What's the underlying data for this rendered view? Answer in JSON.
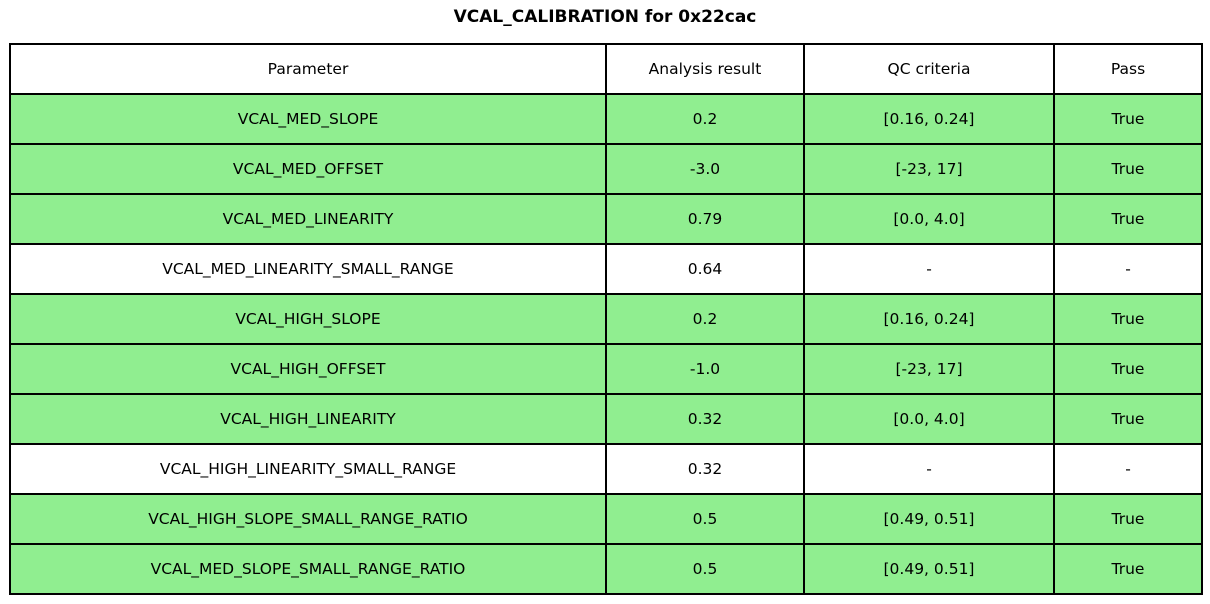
{
  "colors": {
    "row_pass_bg": "#90EE90",
    "row_neutral_bg": "#FFFFFF",
    "border": "#000000",
    "text": "#000000",
    "background": "#FFFFFF"
  },
  "chart_data": {
    "type": "table",
    "title": "VCAL_CALIBRATION for 0x22cac",
    "columns": [
      "Parameter",
      "Analysis result",
      "QC criteria",
      "Pass"
    ],
    "rows": [
      {
        "parameter": "VCAL_MED_SLOPE",
        "result": "0.2",
        "criteria": "[0.16, 0.24]",
        "pass": "True",
        "highlighted": true
      },
      {
        "parameter": "VCAL_MED_OFFSET",
        "result": "-3.0",
        "criteria": "[-23, 17]",
        "pass": "True",
        "highlighted": true
      },
      {
        "parameter": "VCAL_MED_LINEARITY",
        "result": "0.79",
        "criteria": "[0.0, 4.0]",
        "pass": "True",
        "highlighted": true
      },
      {
        "parameter": "VCAL_MED_LINEARITY_SMALL_RANGE",
        "result": "0.64",
        "criteria": "-",
        "pass": "-",
        "highlighted": false
      },
      {
        "parameter": "VCAL_HIGH_SLOPE",
        "result": "0.2",
        "criteria": "[0.16, 0.24]",
        "pass": "True",
        "highlighted": true
      },
      {
        "parameter": "VCAL_HIGH_OFFSET",
        "result": "-1.0",
        "criteria": "[-23, 17]",
        "pass": "True",
        "highlighted": true
      },
      {
        "parameter": "VCAL_HIGH_LINEARITY",
        "result": "0.32",
        "criteria": "[0.0, 4.0]",
        "pass": "True",
        "highlighted": true
      },
      {
        "parameter": "VCAL_HIGH_LINEARITY_SMALL_RANGE",
        "result": "0.32",
        "criteria": "-",
        "pass": "-",
        "highlighted": false
      },
      {
        "parameter": "VCAL_HIGH_SLOPE_SMALL_RANGE_RATIO",
        "result": "0.5",
        "criteria": "[0.49, 0.51]",
        "pass": "True",
        "highlighted": true
      },
      {
        "parameter": "VCAL_MED_SLOPE_SMALL_RANGE_RATIO",
        "result": "0.5",
        "criteria": "[0.49, 0.51]",
        "pass": "True",
        "highlighted": true
      }
    ]
  }
}
